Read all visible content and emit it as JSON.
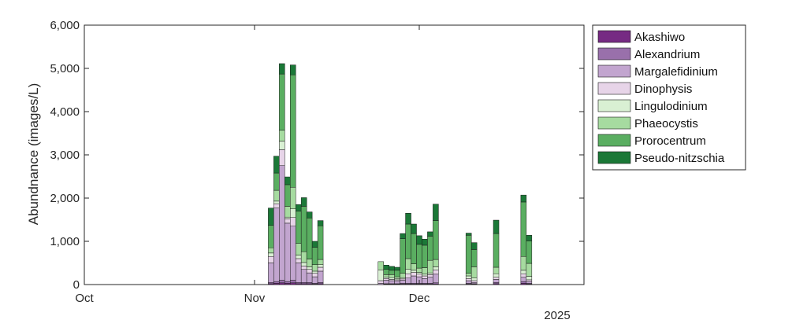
{
  "chart_data": {
    "type": "bar",
    "stacked": true,
    "ylabel": "Abundnance (images/L)",
    "xlabel": "",
    "year_label": "2025",
    "ylim": [
      0,
      6000
    ],
    "yticks": [
      0,
      1000,
      2000,
      3000,
      4000,
      5000,
      6000
    ],
    "ytick_labels": [
      "0",
      "1,000",
      "2,000",
      "3,000",
      "4,000",
      "5,000",
      "6,000"
    ],
    "xlim": [
      "2025-10-01",
      "2025-12-31"
    ],
    "xticks": [
      "2025-10-01",
      "2025-11-01",
      "2025-12-01"
    ],
    "xtick_labels": [
      "Oct",
      "Nov",
      "Dec"
    ],
    "grid": false,
    "legend_position": "outside-top-right",
    "series": [
      {
        "name": "Akashiwo",
        "color": "#762a83"
      },
      {
        "name": "Alexandrium",
        "color": "#9970ab"
      },
      {
        "name": "Margalefidinium",
        "color": "#c2a5cf"
      },
      {
        "name": "Dinophysis",
        "color": "#e7d4e8"
      },
      {
        "name": "Lingulodinium",
        "color": "#d9f0d3"
      },
      {
        "name": "Phaeocystis",
        "color": "#a6dba0"
      },
      {
        "name": "Prorocentrum",
        "color": "#5aae61"
      },
      {
        "name": "Pseudo-nitzschia",
        "color": "#1b7837"
      }
    ],
    "bars": [
      {
        "date": "2025-11-04",
        "values": [
          20,
          30,
          450,
          150,
          80,
          120,
          520,
          400
        ]
      },
      {
        "date": "2025-11-05",
        "values": [
          30,
          40,
          1700,
          100,
          60,
          250,
          400,
          390
        ]
      },
      {
        "date": "2025-11-06",
        "values": [
          40,
          60,
          2650,
          370,
          200,
          250,
          1300,
          240
        ]
      },
      {
        "date": "2025-11-07",
        "values": [
          30,
          40,
          1350,
          100,
          40,
          250,
          500,
          180
        ]
      },
      {
        "date": "2025-11-08",
        "values": [
          40,
          60,
          1250,
          200,
          200,
          500,
          2600,
          230
        ]
      },
      {
        "date": "2025-11-09",
        "values": [
          20,
          30,
          450,
          100,
          80,
          270,
          750,
          150
        ]
      },
      {
        "date": "2025-11-10",
        "values": [
          20,
          30,
          300,
          80,
          80,
          250,
          1050,
          200
        ]
      },
      {
        "date": "2025-11-11",
        "values": [
          20,
          30,
          220,
          80,
          60,
          180,
          950,
          140
        ]
      },
      {
        "date": "2025-11-12",
        "values": [
          10,
          20,
          150,
          80,
          50,
          150,
          400,
          140
        ]
      },
      {
        "date": "2025-11-13",
        "values": [
          20,
          30,
          260,
          90,
          60,
          120,
          780,
          120
        ]
      },
      {
        "date": "2025-11-24",
        "values": [
          0,
          0,
          30,
          60,
          250,
          190,
          0,
          0
        ]
      },
      {
        "date": "2025-11-25",
        "values": [
          10,
          10,
          80,
          40,
          30,
          60,
          120,
          100
        ]
      },
      {
        "date": "2025-11-26",
        "values": [
          10,
          10,
          70,
          30,
          40,
          70,
          100,
          90
        ]
      },
      {
        "date": "2025-11-27",
        "values": [
          10,
          10,
          60,
          30,
          30,
          40,
          150,
          70
        ]
      },
      {
        "date": "2025-11-28",
        "values": [
          10,
          20,
          70,
          30,
          30,
          100,
          800,
          120
        ]
      },
      {
        "date": "2025-11-29",
        "values": [
          10,
          20,
          120,
          100,
          100,
          250,
          800,
          250
        ]
      },
      {
        "date": "2025-11-30",
        "values": [
          10,
          20,
          170,
          80,
          50,
          150,
          700,
          220
        ]
      },
      {
        "date": "2025-12-01",
        "values": [
          10,
          20,
          150,
          60,
          40,
          100,
          550,
          200
        ]
      },
      {
        "date": "2025-12-02",
        "values": [
          10,
          20,
          110,
          60,
          40,
          150,
          520,
          140
        ]
      },
      {
        "date": "2025-12-03",
        "values": [
          10,
          20,
          140,
          60,
          40,
          290,
          560,
          100
        ]
      },
      {
        "date": "2025-12-04",
        "values": [
          10,
          30,
          200,
          100,
          70,
          170,
          900,
          380
        ]
      },
      {
        "date": "2025-12-10",
        "values": [
          10,
          20,
          60,
          50,
          60,
          60,
          880,
          50
        ]
      },
      {
        "date": "2025-12-11",
        "values": [
          10,
          10,
          30,
          40,
          60,
          260,
          400,
          160
        ]
      },
      {
        "date": "2025-12-15",
        "values": [
          20,
          30,
          70,
          50,
          80,
          150,
          780,
          310
        ]
      },
      {
        "date": "2025-12-20",
        "values": [
          30,
          40,
          100,
          80,
          80,
          320,
          1260,
          160
        ]
      },
      {
        "date": "2025-12-21",
        "values": [
          10,
          20,
          40,
          40,
          80,
          300,
          520,
          130
        ]
      }
    ]
  }
}
